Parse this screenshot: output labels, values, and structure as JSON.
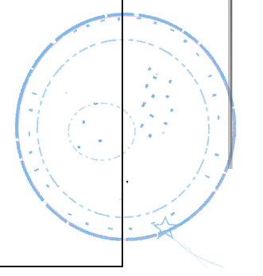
{
  "document": {
    "stamp": {
      "ring_color": "#6fb5ea",
      "ink_color": "#3f8fcf",
      "overprint_color": "#e7a6c8"
    },
    "rule_color": "#111111"
  }
}
